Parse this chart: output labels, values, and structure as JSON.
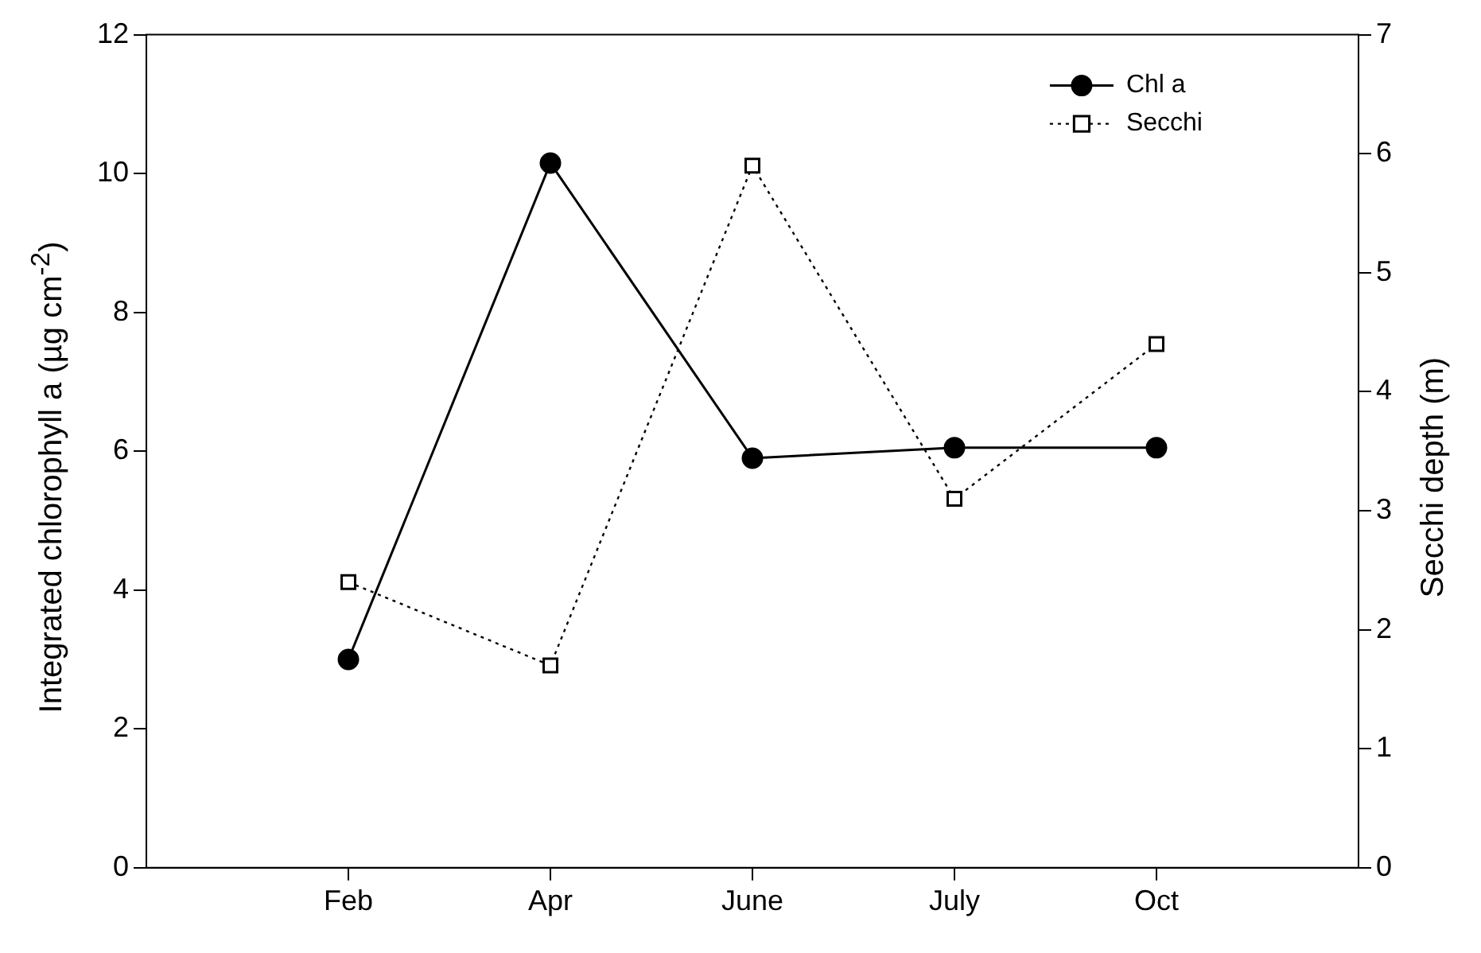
{
  "chart_data": {
    "type": "line",
    "ylabel": "Integrated chlorophyll a (µg cm$^{-2}$)",
    "y2label": "Secchi depth (m)",
    "categories": [
      "Feb",
      "Apr",
      "June",
      "July",
      "Oct"
    ],
    "series": [
      {
        "name": "Chl a",
        "color": "#000000",
        "values": [
          3.0,
          10.15,
          5.9,
          6.05,
          6.05
        ],
        "marker": "circle",
        "line_style": "solid"
      },
      {
        "name": "Secchi",
        "color": "#000000",
        "values": [
          2.4,
          1.7,
          5.9,
          3.1,
          4.4
        ],
        "axis": "y2",
        "marker": "square",
        "line_style": "dotted"
      }
    ],
    "ylim": [
      0,
      12
    ],
    "yticks": [
      0,
      2,
      4,
      6,
      8,
      10,
      12
    ],
    "y2lim": [
      0,
      7
    ],
    "y2ticks": [
      0,
      1,
      2,
      3,
      4,
      5,
      6,
      7
    ],
    "legend": "top right",
    "grid": false
  }
}
